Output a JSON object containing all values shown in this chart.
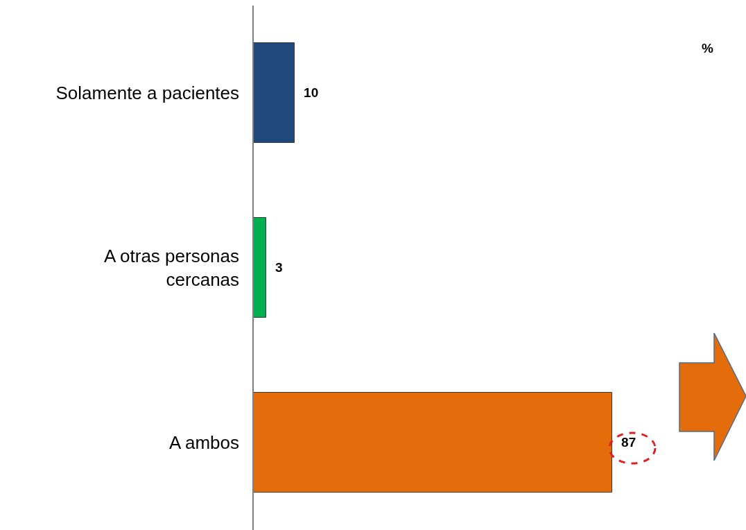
{
  "chart_data": {
    "type": "bar",
    "orientation": "horizontal",
    "categories": [
      "Solamente a pacientes",
      "A otras personas\ncercanas",
      "A ambos"
    ],
    "values": [
      10,
      3,
      87
    ],
    "colors": [
      "#1f497d",
      "#00b050",
      "#e46c0a"
    ],
    "xlim": [
      0,
      119.5
    ],
    "data_labels": true,
    "annotations": [
      "%"
    ]
  }
}
